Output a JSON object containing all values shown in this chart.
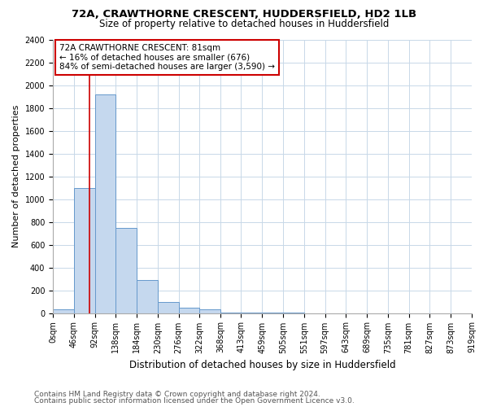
{
  "title1": "72A, CRAWTHORNE CRESCENT, HUDDERSFIELD, HD2 1LB",
  "title2": "Size of property relative to detached houses in Huddersfield",
  "xlabel": "Distribution of detached houses by size in Huddersfield",
  "ylabel": "Number of detached properties",
  "bin_edges": [
    0,
    46,
    92,
    138,
    184,
    230,
    276,
    322,
    368,
    413,
    459,
    505,
    551,
    597,
    643,
    689,
    735,
    781,
    827,
    873,
    919
  ],
  "bar_heights": [
    35,
    1100,
    1920,
    750,
    290,
    100,
    50,
    30,
    5,
    3,
    2,
    1,
    0,
    0,
    0,
    0,
    0,
    0,
    0,
    0
  ],
  "bar_color": "#c5d8ee",
  "bar_edge_color": "#6699cc",
  "property_size": 81,
  "annotation_line1": "72A CRAWTHORNE CRESCENT: 81sqm",
  "annotation_line2": "← 16% of detached houses are smaller (676)",
  "annotation_line3": "84% of semi-detached houses are larger (3,590) →",
  "annotation_box_color": "#ffffff",
  "annotation_box_edge": "#cc0000",
  "vline_color": "#cc0000",
  "ylim": [
    0,
    2400
  ],
  "yticks": [
    0,
    200,
    400,
    600,
    800,
    1000,
    1200,
    1400,
    1600,
    1800,
    2000,
    2200,
    2400
  ],
  "tick_labels": [
    "0sqm",
    "46sqm",
    "92sqm",
    "138sqm",
    "184sqm",
    "230sqm",
    "276sqm",
    "322sqm",
    "368sqm",
    "413sqm",
    "459sqm",
    "505sqm",
    "551sqm",
    "597sqm",
    "643sqm",
    "689sqm",
    "735sqm",
    "781sqm",
    "827sqm",
    "873sqm",
    "919sqm"
  ],
  "footer1": "Contains HM Land Registry data © Crown copyright and database right 2024.",
  "footer2": "Contains public sector information licensed under the Open Government Licence v3.0.",
  "bg_color": "#ffffff",
  "grid_color": "#c8d8e8",
  "title1_fontsize": 9.5,
  "title2_fontsize": 8.5,
  "xlabel_fontsize": 8.5,
  "ylabel_fontsize": 8,
  "tick_fontsize": 7,
  "annot_fontsize": 7.5,
  "footer_fontsize": 6.5
}
